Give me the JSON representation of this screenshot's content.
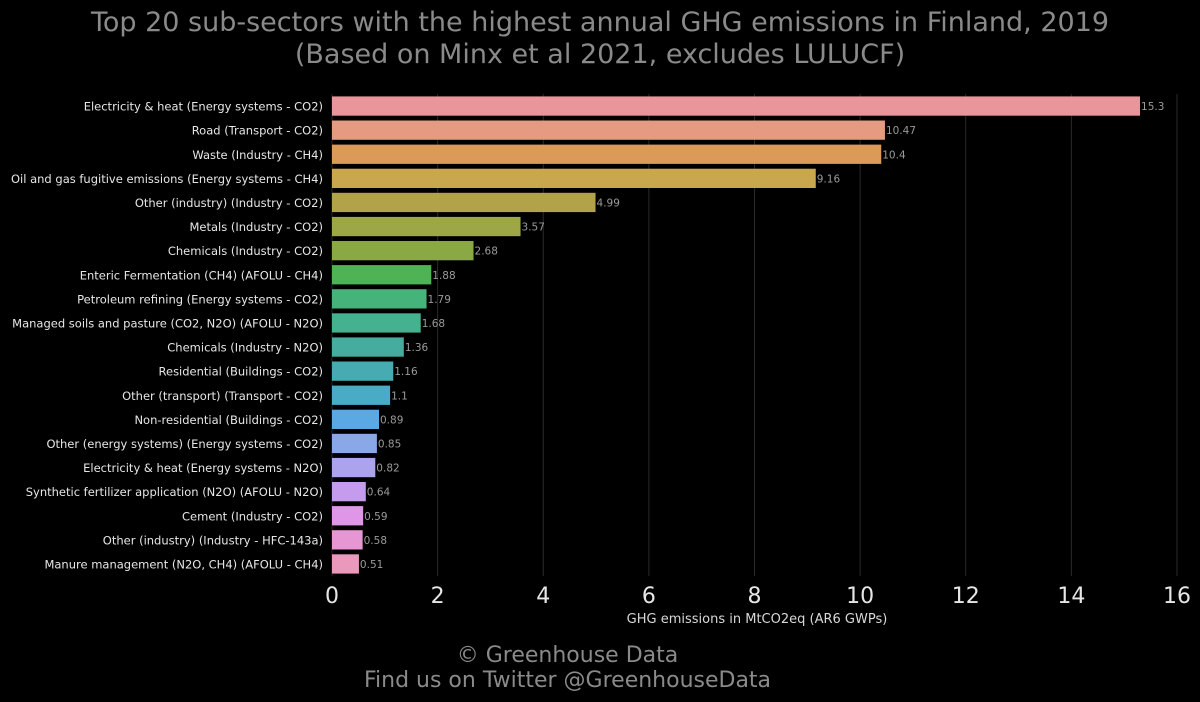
{
  "header": {
    "title_line1": "Top 20 sub-sectors with the highest annual GHG emissions in Finland, 2019",
    "title_line2": "(Based on Minx et al 2021, excludes LULUCF)"
  },
  "footer": {
    "line1": "© Greenhouse Data",
    "line2": "Find us on Twitter @GreenhouseData"
  },
  "chart_data": {
    "type": "bar",
    "orientation": "horizontal",
    "title": "Top 20 sub-sectors with the highest annual GHG emissions in Finland, 2019",
    "subtitle": "(Based on Minx et al 2021, excludes LULUCF)",
    "xlabel": "GHG emissions in MtCO2eq (AR6 GWPs)",
    "ylabel": "",
    "xlim": [
      0,
      16
    ],
    "xticks": [
      0,
      2,
      4,
      6,
      8,
      10,
      12,
      14,
      16
    ],
    "grid": "vertical",
    "legend": "none",
    "categories": [
      "Electricity & heat (Energy systems - CO2)",
      "Road (Transport - CO2)",
      "Waste (Industry - CH4)",
      "Oil and gas fugitive emissions (Energy systems - CH4)",
      "Other (industry) (Industry - CO2)",
      "Metals (Industry - CO2)",
      "Chemicals (Industry - CO2)",
      "Enteric Fermentation (CH4) (AFOLU - CH4)",
      "Petroleum refining (Energy systems - CO2)",
      "Managed soils and pasture (CO2, N2O) (AFOLU - N2O)",
      "Chemicals (Industry - N2O)",
      "Residential (Buildings - CO2)",
      "Other (transport) (Transport - CO2)",
      "Non-residential (Buildings - CO2)",
      "Other (energy systems) (Energy systems - CO2)",
      "Electricity & heat (Energy systems - N2O)",
      "Synthetic fertilizer application (N2O) (AFOLU - N2O)",
      "Cement (Industry - CO2)",
      "Other (industry) (Industry - HFC-143a)",
      "Manure management (N2O, CH4) (AFOLU - CH4)"
    ],
    "values": [
      15.3,
      10.47,
      10.4,
      9.16,
      4.99,
      3.57,
      2.68,
      1.88,
      1.79,
      1.68,
      1.36,
      1.16,
      1.1,
      0.89,
      0.85,
      0.82,
      0.64,
      0.59,
      0.58,
      0.51
    ],
    "value_labels": [
      "15.3",
      "10.47",
      "10.4",
      "9.16",
      "4.99",
      "3.57",
      "2.68",
      "1.88",
      "1.79",
      "1.68",
      "1.36",
      "1.16",
      "1.1",
      "0.89",
      "0.85",
      "0.82",
      "0.64",
      "0.59",
      "0.58",
      "0.51"
    ],
    "colors": [
      "#e8969c",
      "#e59a82",
      "#dc9a58",
      "#c9a74e",
      "#b2a34a",
      "#9ea745",
      "#8aa944",
      "#4fb356",
      "#46b37a",
      "#44b28e",
      "#45ad9f",
      "#46acb2",
      "#4aabc6",
      "#5aa9e4",
      "#8aa8e8",
      "#aba4ec",
      "#c59ced",
      "#df96e6",
      "#e796d4",
      "#ea98bc"
    ]
  }
}
